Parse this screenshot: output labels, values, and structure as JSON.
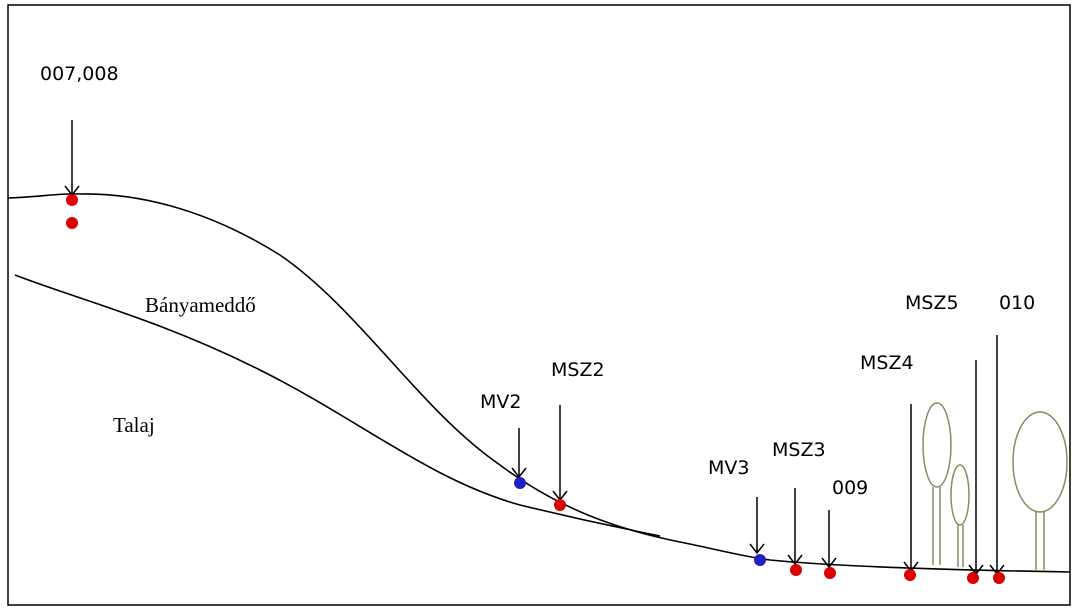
{
  "region_labels": [
    "Bányameddő",
    "Talaj"
  ],
  "points": [
    {
      "label": "007,008"
    },
    {
      "label": "MV2"
    },
    {
      "label": "MSZ2"
    },
    {
      "label": "MV3"
    },
    {
      "label": "MSZ3"
    },
    {
      "label": "009"
    },
    {
      "label": "MSZ4"
    },
    {
      "label": "MSZ5"
    },
    {
      "label": "010"
    }
  ]
}
